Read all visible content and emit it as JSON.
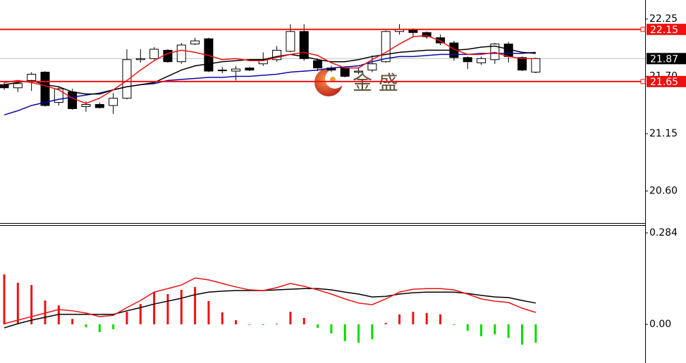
{
  "watermark": "金 盛",
  "chart_data": [
    {
      "type": "candlestick",
      "open": [
        21.62,
        21.59,
        21.66,
        21.74,
        21.45,
        21.55,
        21.41,
        21.43,
        21.42,
        21.49,
        21.86,
        21.87,
        21.95,
        21.84,
        22.01,
        22.06,
        21.76,
        21.75,
        21.78,
        21.82,
        21.86,
        21.94,
        22.13,
        21.85,
        21.78,
        21.78,
        21.74,
        21.76,
        21.84,
        22.13,
        22.15,
        22.12,
        22.07,
        22.02,
        21.88,
        21.83,
        21.86,
        22.01,
        21.88,
        21.74
      ],
      "high": [
        21.64,
        21.66,
        21.74,
        21.75,
        21.6,
        21.58,
        21.46,
        21.45,
        21.54,
        21.96,
        21.96,
        21.98,
        21.96,
        22.02,
        22.07,
        22.07,
        21.79,
        21.8,
        21.79,
        21.93,
        21.99,
        22.2,
        22.2,
        21.87,
        21.8,
        21.79,
        21.78,
        21.9,
        22.14,
        22.2,
        22.16,
        22.13,
        22.1,
        22.04,
        21.89,
        21.89,
        22.02,
        22.03,
        21.89,
        21.88
      ],
      "low": [
        21.57,
        21.55,
        21.56,
        21.41,
        21.42,
        21.38,
        21.36,
        21.39,
        21.34,
        21.48,
        21.83,
        21.86,
        21.83,
        21.82,
        22.0,
        21.74,
        21.73,
        21.66,
        21.75,
        21.8,
        21.84,
        21.93,
        21.85,
        21.75,
        21.74,
        21.69,
        21.72,
        21.74,
        21.83,
        22.1,
        22.08,
        22.06,
        22.0,
        21.85,
        21.77,
        21.81,
        21.82,
        21.83,
        21.75,
        21.73
      ],
      "close": [
        21.59,
        21.63,
        21.72,
        21.42,
        21.58,
        21.39,
        21.43,
        21.4,
        21.49,
        21.86,
        21.87,
        21.96,
        21.84,
        22.0,
        22.04,
        21.75,
        21.76,
        21.77,
        21.76,
        21.86,
        21.95,
        22.13,
        21.87,
        21.78,
        21.76,
        21.7,
        21.75,
        21.82,
        22.13,
        22.15,
        22.12,
        22.08,
        22.02,
        21.88,
        21.84,
        21.87,
        22.01,
        21.89,
        21.76,
        21.87
      ],
      "up_color": "#ffffff",
      "down_color": "#000000",
      "series": [
        {
          "color": "#0a0aa8",
          "values": [
            21.33,
            21.37,
            21.42,
            21.45,
            21.48,
            21.5,
            21.52,
            21.54,
            21.57,
            21.6,
            21.62,
            21.63,
            21.66,
            21.67,
            21.68,
            21.69,
            21.69,
            21.7,
            21.7,
            21.71,
            21.72,
            21.74,
            21.75,
            21.76,
            21.78,
            21.79,
            21.8,
            21.84,
            21.87,
            21.89,
            21.89,
            21.9,
            21.91,
            21.91,
            21.91,
            21.92,
            21.92,
            21.92,
            21.92,
            21.93
          ]
        },
        {
          "color": "#000000",
          "values": [
            21.62,
            21.64,
            21.66,
            21.62,
            21.6,
            21.55,
            21.53,
            21.53,
            21.57,
            21.6,
            21.62,
            21.64,
            21.7,
            21.76,
            21.8,
            21.82,
            21.84,
            21.85,
            21.86,
            21.86,
            21.89,
            21.91,
            21.89,
            21.86,
            21.84,
            21.84,
            21.86,
            21.89,
            21.91,
            21.93,
            21.94,
            21.95,
            21.95,
            21.95,
            21.96,
            21.98,
            21.99,
            21.96,
            21.93,
            21.92
          ]
        },
        {
          "color": "#ee1111",
          "values": [
            21.64,
            21.66,
            21.64,
            21.61,
            21.57,
            21.49,
            21.44,
            21.49,
            21.57,
            21.66,
            21.76,
            21.85,
            21.92,
            21.95,
            21.93,
            21.9,
            21.86,
            21.87,
            21.85,
            21.85,
            21.88,
            21.91,
            21.93,
            21.9,
            21.83,
            21.78,
            21.78,
            21.86,
            21.93,
            22.01,
            22.08,
            22.09,
            22.04,
            21.96,
            21.91,
            21.91,
            21.93,
            21.89,
            21.87,
            21.87
          ]
        }
      ],
      "levels": [
        22.15,
        21.65
      ],
      "level_color": "#ee1111",
      "current_price": 21.87,
      "ylim": [
        20.293,
        22.432
      ],
      "yticks": [
        22.25,
        {
          "value": 21.7,
          "label": "21.70"
        },
        21.15,
        {
          "value": 20.6,
          "label": "20.60"
        }
      ]
    },
    {
      "type": "macd",
      "values": [
        0.155,
        0.129,
        0.122,
        0.074,
        0.059,
        0.017,
        -0.009,
        -0.024,
        -0.015,
        0.039,
        0.063,
        0.1,
        0.094,
        0.107,
        0.116,
        0.072,
        0.037,
        0.013,
        -0.002,
        -0.002,
        0.002,
        0.039,
        0.02,
        -0.011,
        -0.028,
        -0.052,
        -0.057,
        -0.046,
        0.004,
        0.031,
        0.039,
        0.035,
        0.031,
        -0.002,
        -0.02,
        -0.037,
        -0.031,
        -0.042,
        -0.063,
        -0.057
      ],
      "up_color": "#ee1111",
      "down_color": "#00dd00",
      "series": [
        {
          "color": "#000000",
          "values": [
            -0.011,
            0.002,
            0.013,
            0.022,
            0.031,
            0.031,
            0.031,
            0.031,
            0.031,
            0.042,
            0.052,
            0.063,
            0.072,
            0.081,
            0.092,
            0.1,
            0.103,
            0.105,
            0.105,
            0.105,
            0.107,
            0.109,
            0.111,
            0.111,
            0.107,
            0.1,
            0.094,
            0.085,
            0.087,
            0.094,
            0.098,
            0.1,
            0.1,
            0.1,
            0.096,
            0.09,
            0.085,
            0.083,
            0.074,
            0.066
          ]
        },
        {
          "color": "#ee1111",
          "values": [
            0.002,
            0.013,
            0.024,
            0.035,
            0.046,
            0.042,
            0.035,
            0.024,
            0.028,
            0.052,
            0.074,
            0.1,
            0.111,
            0.122,
            0.144,
            0.138,
            0.127,
            0.116,
            0.107,
            0.105,
            0.114,
            0.127,
            0.118,
            0.107,
            0.094,
            0.079,
            0.066,
            0.061,
            0.079,
            0.1,
            0.109,
            0.111,
            0.111,
            0.107,
            0.094,
            0.079,
            0.072,
            0.068,
            0.05,
            0.037
          ]
        }
      ],
      "ylim": [
        -0.12,
        0.308
      ],
      "yticks": [
        0.284,
        {
          "value": 0,
          "label": "0.00"
        }
      ]
    }
  ]
}
